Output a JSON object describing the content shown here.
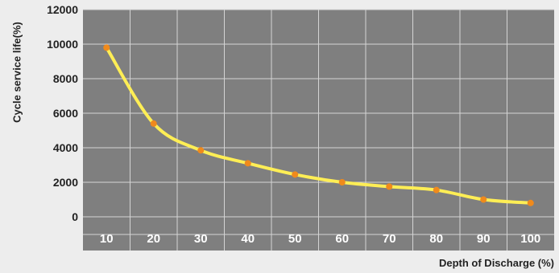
{
  "chart_data": {
    "type": "line",
    "title": "",
    "xlabel": "Depth of Discharge (%)",
    "ylabel": "Cycle service life(%)",
    "categories": [
      "10",
      "20",
      "30",
      "40",
      "50",
      "60",
      "70",
      "80",
      "90",
      "100"
    ],
    "x": [
      10,
      20,
      30,
      40,
      50,
      60,
      70,
      80,
      90,
      100
    ],
    "y": [
      9800,
      5400,
      3850,
      3100,
      2450,
      2000,
      1750,
      1550,
      1000,
      800
    ],
    "ylim": [
      0,
      12000
    ],
    "yticks": [
      "0",
      "2000",
      "4000",
      "6000",
      "8000",
      "10000",
      "12000"
    ],
    "grid": true,
    "legend": "none",
    "colors": {
      "plot_background": "#7f7f7f",
      "gridline": "#d4d4d4",
      "line": "#ffee55",
      "marker": "#f08a1c",
      "page_background": "#ededed"
    }
  }
}
